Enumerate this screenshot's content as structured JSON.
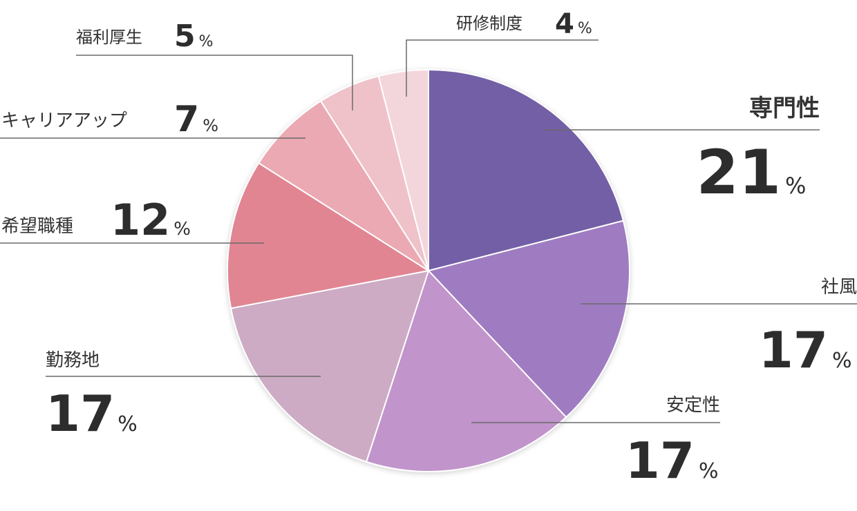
{
  "chart_data": {
    "type": "pie",
    "unit": "%",
    "slices": [
      {
        "name": "専門性",
        "value": 21,
        "color": "#735ea6"
      },
      {
        "name": "社風",
        "value": 17,
        "color": "#9f7cc1"
      },
      {
        "name": "安定性",
        "value": 17,
        "color": "#c194cc"
      },
      {
        "name": "勤務地",
        "value": 17,
        "color": "#cdabc4"
      },
      {
        "name": "希望職種",
        "value": 12,
        "color": "#e18592"
      },
      {
        "name": "キャリアアップ",
        "value": 7,
        "color": "#eaa9b3"
      },
      {
        "name": "福利厚生",
        "value": 5,
        "color": "#efc2ca"
      },
      {
        "name": "研修制度",
        "value": 4,
        "color": "#f3d6dc"
      }
    ]
  }
}
